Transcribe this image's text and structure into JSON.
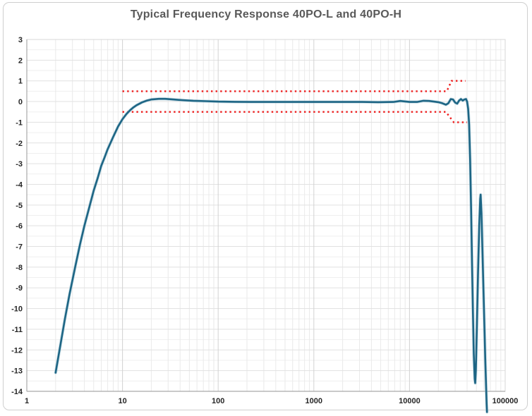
{
  "chart_data": {
    "type": "line",
    "title": "Typical Frequency Response 40PO-L and 40PO-H",
    "xlabel": "",
    "ylabel": "",
    "x_scale": "log",
    "xlim": [
      1,
      100000
    ],
    "ylim": [
      -14,
      3
    ],
    "x_ticks": [
      1,
      10,
      100,
      1000,
      10000,
      100000
    ],
    "x_tick_labels": [
      "1",
      "10",
      "100",
      "1000",
      "10000",
      "100000"
    ],
    "y_tick_step": 1,
    "y_minor_step": 0.5,
    "y_tick_labels": [
      "3",
      "2",
      "1",
      "0",
      "-1",
      "-2",
      "-3",
      "-4",
      "-5",
      "-6",
      "-7",
      "-8",
      "-9",
      "-10",
      "-11",
      "-12",
      "-13",
      "-14"
    ],
    "grid": "on",
    "legend": "none",
    "colors": {
      "curve": "#1d6584",
      "curve_halo": "#9dc4d4",
      "tolerance": "#ee1d1d",
      "grid_minor_x": "#eaeaea",
      "grid_major_x": "#d2d2d2",
      "grid_minor_y": "#efefef",
      "grid_major_y": "#e1e1e1",
      "plot_border": "#d7d7d7",
      "axis_line": "#a9a9a9",
      "title_text": "#595959",
      "tick_text": "#262626",
      "frame_border": "#cfcfcf"
    },
    "series": [
      {
        "name": "frequency-response",
        "style": "solid",
        "points": [
          [
            2,
            -13.1
          ],
          [
            2.2,
            -12.0
          ],
          [
            2.5,
            -10.5
          ],
          [
            2.8,
            -9.3
          ],
          [
            3.2,
            -8.0
          ],
          [
            3.6,
            -6.9
          ],
          [
            4.0,
            -6.0
          ],
          [
            4.5,
            -5.1
          ],
          [
            5.0,
            -4.3
          ],
          [
            5.5,
            -3.7
          ],
          [
            6.0,
            -3.1
          ],
          [
            6.5,
            -2.7
          ],
          [
            7.0,
            -2.3
          ],
          [
            8.0,
            -1.7
          ],
          [
            9.0,
            -1.2
          ],
          [
            10,
            -0.85
          ],
          [
            11,
            -0.6
          ],
          [
            12,
            -0.42
          ],
          [
            13,
            -0.28
          ],
          [
            14,
            -0.18
          ],
          [
            16,
            -0.04
          ],
          [
            18,
            0.05
          ],
          [
            20,
            0.1
          ],
          [
            24,
            0.13
          ],
          [
            28,
            0.13
          ],
          [
            34,
            0.1
          ],
          [
            42,
            0.07
          ],
          [
            55,
            0.04
          ],
          [
            75,
            0.02
          ],
          [
            100,
            0.0
          ],
          [
            150,
            -0.01
          ],
          [
            220,
            -0.02
          ],
          [
            320,
            -0.02
          ],
          [
            470,
            -0.02
          ],
          [
            680,
            -0.02
          ],
          [
            1000,
            -0.02
          ],
          [
            1500,
            -0.02
          ],
          [
            2200,
            -0.02
          ],
          [
            3200,
            -0.02
          ],
          [
            4700,
            -0.03
          ],
          [
            6800,
            -0.02
          ],
          [
            8000,
            0.03
          ],
          [
            10000,
            -0.02
          ],
          [
            12000,
            -0.02
          ],
          [
            14000,
            0.04
          ],
          [
            16000,
            0.03
          ],
          [
            18000,
            0.0
          ],
          [
            20000,
            -0.03
          ],
          [
            22000,
            -0.08
          ],
          [
            24000,
            -0.15
          ],
          [
            25500,
            -0.08
          ],
          [
            27000,
            0.12
          ],
          [
            28500,
            0.1
          ],
          [
            30000,
            -0.05
          ],
          [
            31500,
            -0.1
          ],
          [
            33000,
            0.05
          ],
          [
            34500,
            0.12
          ],
          [
            36000,
            0.05
          ],
          [
            37500,
            0.1
          ],
          [
            39000,
            0.12
          ],
          [
            40000,
            0.0
          ],
          [
            41000,
            -0.35
          ],
          [
            42000,
            -1.1
          ],
          [
            43000,
            -2.8
          ],
          [
            44000,
            -5.2
          ],
          [
            45000,
            -7.8
          ],
          [
            46000,
            -10.2
          ],
          [
            47000,
            -12.2
          ],
          [
            48000,
            -13.4
          ],
          [
            48600,
            -13.6
          ],
          [
            49300,
            -13.0
          ],
          [
            50500,
            -11.0
          ],
          [
            52000,
            -8.3
          ],
          [
            53500,
            -6.0
          ],
          [
            54800,
            -4.7
          ],
          [
            55400,
            -4.5
          ],
          [
            56500,
            -5.4
          ],
          [
            58000,
            -7.4
          ],
          [
            60000,
            -10.0
          ],
          [
            62000,
            -12.5
          ],
          [
            64000,
            -14.6
          ],
          [
            64500,
            -15.0
          ]
        ]
      },
      {
        "name": "upper-tolerance-limit",
        "style": "dotted",
        "points": [
          [
            10,
            0.5
          ],
          [
            24500,
            0.5
          ],
          [
            27500,
            1.0
          ],
          [
            38500,
            1.0
          ]
        ]
      },
      {
        "name": "lower-tolerance-limit",
        "style": "dotted",
        "points": [
          [
            10,
            -0.5
          ],
          [
            24000,
            -0.5
          ],
          [
            29000,
            -1.0
          ],
          [
            40000,
            -1.0
          ]
        ]
      }
    ]
  }
}
